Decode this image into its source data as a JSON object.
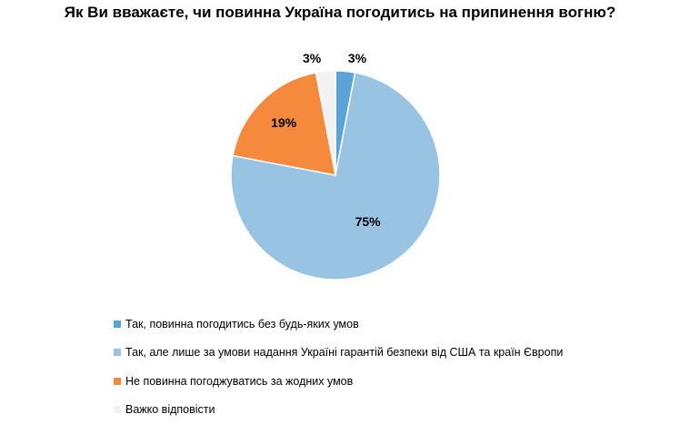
{
  "chart_data": {
    "type": "pie",
    "title": "Як Ви вважаєте, чи повинна Україна погодитись на припинення вогню?",
    "slices": [
      {
        "label": "Так, повинна погодитись без будь-яких умов",
        "value": 3,
        "display": "3%",
        "color": "#5ba3d6"
      },
      {
        "label": "Так, але лише за умови надання Україні гарантій безпеки від США та країн Європи",
        "value": 75,
        "display": "75%",
        "color": "#99c3e2"
      },
      {
        "label": "Не повинна погоджуватись за жодних умов",
        "value": 19,
        "display": "19%",
        "color": "#f58a3c"
      },
      {
        "label": "Важко відповісти",
        "value": 3,
        "display": "3%",
        "color": "#f2f2f2"
      }
    ],
    "legend_position": "bottom-left"
  }
}
